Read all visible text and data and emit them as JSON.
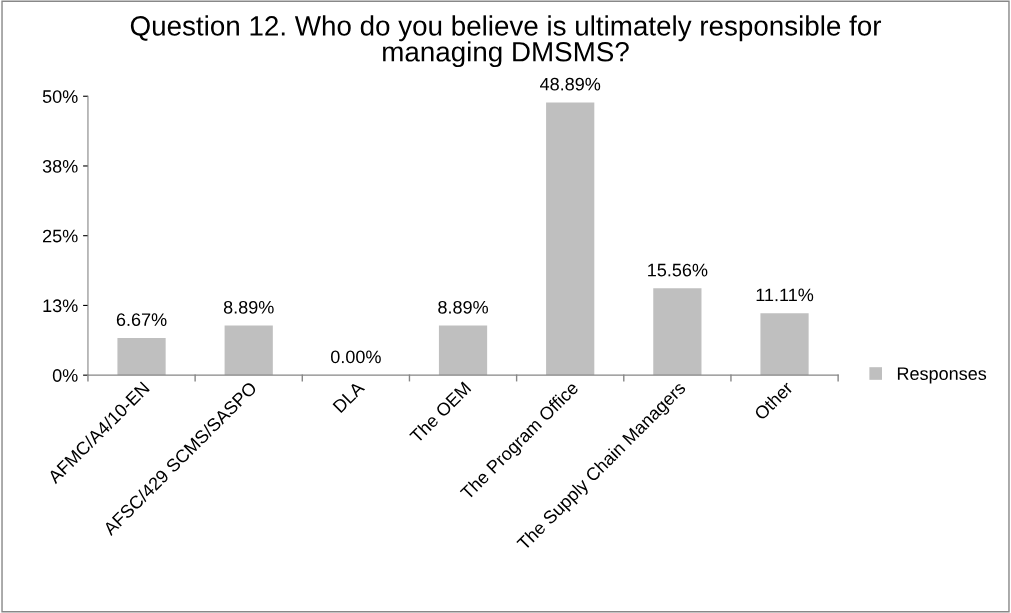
{
  "chart_data": {
    "type": "bar",
    "title": "Question 12. Who do you believe is ultimately responsible for managing DMSMS?",
    "categories": [
      "AFMC/A4/10-EN",
      "AFSC/429 SCMS/SASPO",
      "DLA",
      "The OEM",
      "The Program Office",
      "The Supply Chain Managers",
      "Other"
    ],
    "series": [
      {
        "name": "Responses",
        "color": "#bfbfbf",
        "values": [
          6.67,
          8.89,
          0.0,
          8.89,
          48.89,
          15.56,
          11.11
        ]
      }
    ],
    "value_labels": [
      "6.67%",
      "8.89%",
      "0.00%",
      "8.89%",
      "48.89%",
      "15.56%",
      "11.11%"
    ],
    "ylim": [
      0,
      50
    ],
    "yticks": [
      {
        "value": 0,
        "label": "0%"
      },
      {
        "value": 12.5,
        "label": "13%"
      },
      {
        "value": 25,
        "label": "25%"
      },
      {
        "value": 37.5,
        "label": "38%"
      },
      {
        "value": 50,
        "label": "50%"
      }
    ],
    "grid": false,
    "legend": "right"
  }
}
